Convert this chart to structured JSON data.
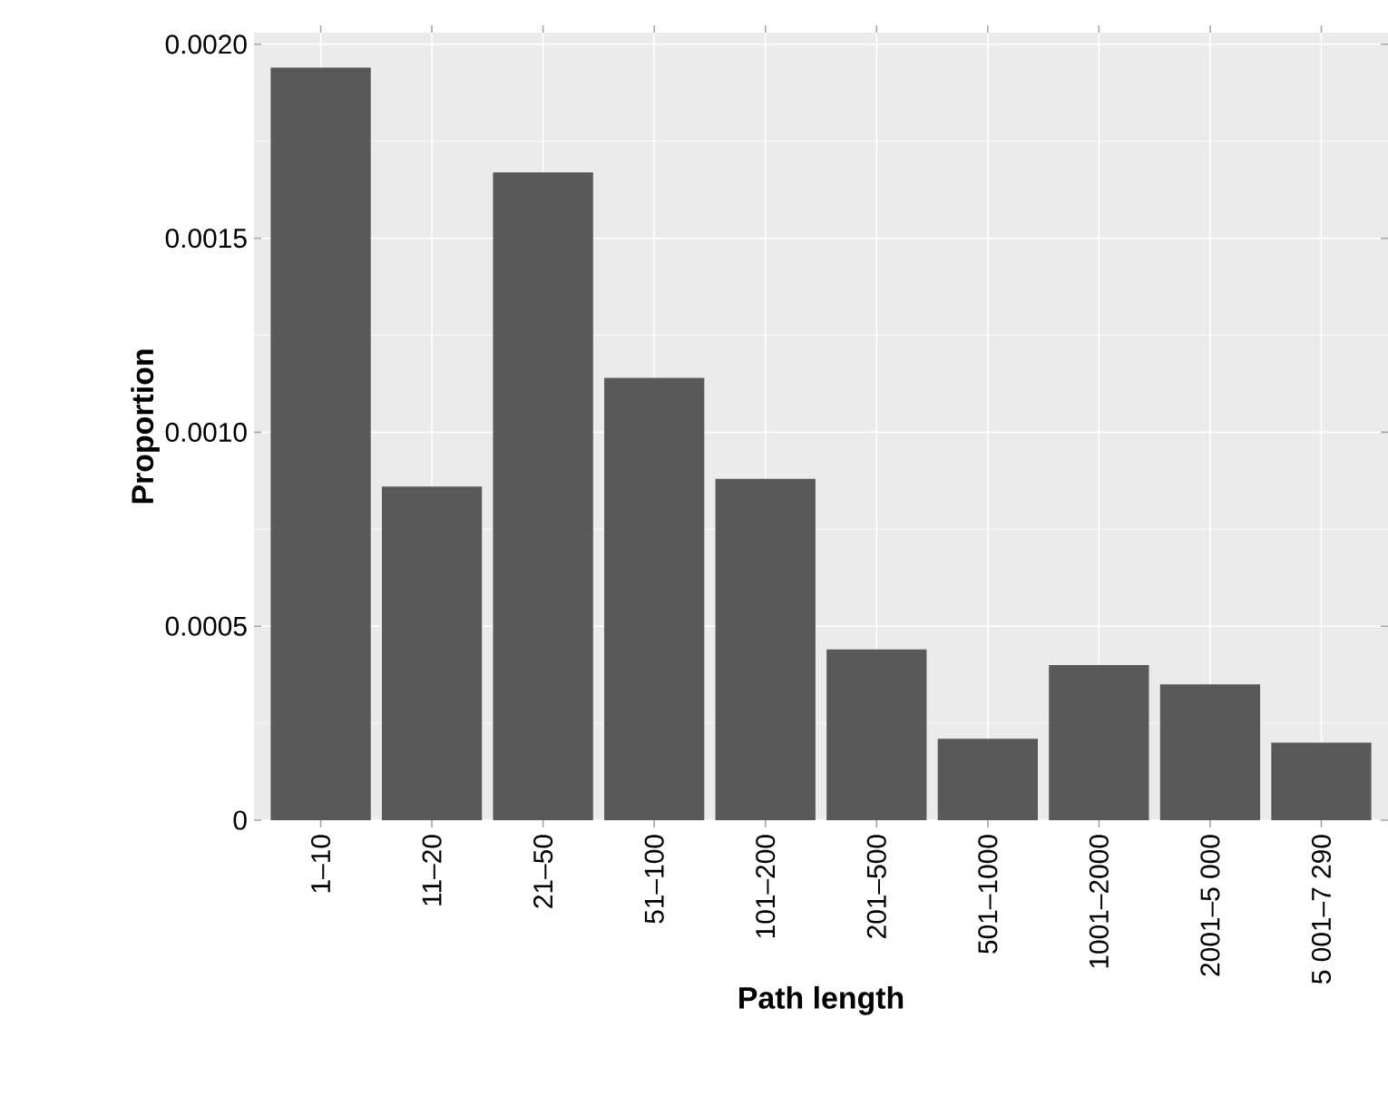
{
  "chart_data": {
    "type": "bar",
    "xlabel": "Path length",
    "ylabel": "Proportion",
    "categories": [
      "1–10",
      "11–20",
      "21–50",
      "51–100",
      "101–200",
      "201–500",
      "501–1000",
      "1001–2000",
      "2001–5 000",
      "5 001–7 290"
    ],
    "values": [
      0.00194,
      0.00086,
      0.00167,
      0.00114,
      0.00088,
      0.00044,
      0.00021,
      0.0004,
      0.00035,
      0.0002
    ],
    "color": "#595959",
    "ylim": [
      0,
      0.00203
    ],
    "yticks": [
      0,
      {
        "value": 0.0005,
        "label": "0.0005"
      },
      {
        "value": 0.001,
        "label": "0.0010"
      },
      {
        "value": 0.0015,
        "label": "0.0015"
      },
      {
        "value": 0.002,
        "label": "0.0020"
      }
    ],
    "grid": true
  }
}
